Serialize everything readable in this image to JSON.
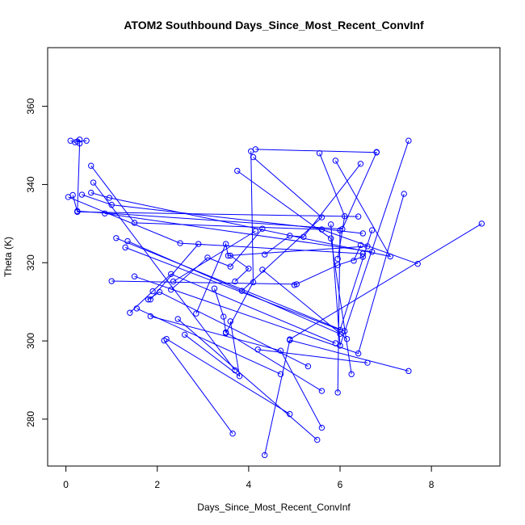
{
  "chart_data": {
    "type": "line",
    "title": "ATOM2 Southbound Days_Since_Most_Recent_ConvInf",
    "xlabel": "Days_Since_Most_Recent_ConvInf",
    "ylabel": "Theta (K)",
    "xlim": [
      -0.4,
      9.5
    ],
    "ylim": [
      268,
      375
    ],
    "x_ticks": [
      0,
      2,
      4,
      6,
      8
    ],
    "x_tick_labels": [
      "0",
      "2",
      "4",
      "6",
      "8"
    ],
    "y_ticks": [
      280,
      300,
      320,
      340,
      360
    ],
    "y_tick_labels": [
      "280",
      "300",
      "320",
      "340",
      "360"
    ],
    "line_color": "#0000ff",
    "marker": "open-circle",
    "grid": false,
    "series": [
      {
        "points": [
          [
            0.1,
            351.2
          ],
          [
            0.2,
            350.8
          ],
          [
            0.3,
            351.5
          ],
          [
            0.25,
            351
          ],
          [
            0.45,
            351.2
          ]
        ]
      },
      {
        "points": [
          [
            0.05,
            336.8
          ],
          [
            2.5,
            325
          ],
          [
            6.5,
            322.3
          ]
        ]
      },
      {
        "points": [
          [
            0.15,
            337.3
          ],
          [
            0.25,
            333
          ],
          [
            6.4,
            331.8
          ]
        ]
      },
      {
        "points": [
          [
            0.35,
            337.4
          ],
          [
            1.0,
            334.8
          ],
          [
            6.5,
            327.5
          ]
        ]
      },
      {
        "points": [
          [
            0.55,
            337.9
          ],
          [
            0.95,
            336.6
          ],
          [
            7.1,
            321.6
          ],
          [
            5.9,
            346.1
          ]
        ]
      },
      {
        "points": [
          [
            0.85,
            332.6
          ],
          [
            6.7,
            322.8
          ]
        ]
      },
      {
        "points": [
          [
            0.3,
            350.5
          ],
          [
            0.25,
            333.2
          ],
          [
            6.05,
            328.6
          ],
          [
            6.8,
            348.3
          ]
        ]
      },
      {
        "points": [
          [
            0.55,
            344.8
          ],
          [
            1.5,
            330.2
          ],
          [
            5.6,
            328.5
          ],
          [
            7.7,
            319.7
          ]
        ]
      },
      {
        "points": [
          [
            1.1,
            326.3
          ],
          [
            6.1,
            302.5
          ]
        ]
      },
      {
        "points": [
          [
            1.35,
            325.5
          ],
          [
            6.0,
            301.8
          ]
        ]
      },
      {
        "points": [
          [
            1.3,
            323.9
          ],
          [
            6.0,
            302.8
          ],
          [
            6.7,
            328.3
          ]
        ]
      },
      {
        "points": [
          [
            1.0,
            315.3
          ],
          [
            5.05,
            314.5
          ]
        ]
      },
      {
        "points": [
          [
            1.5,
            316.5
          ],
          [
            6.4,
            296.8
          ],
          [
            7.4,
            337.6
          ]
        ]
      },
      {
        "points": [
          [
            1.4,
            307.2
          ],
          [
            1.9,
            312.7
          ],
          [
            2.3,
            317.1
          ],
          [
            5.9,
            299.4
          ]
        ]
      },
      {
        "points": [
          [
            1.55,
            308.3
          ],
          [
            4.7,
            291.5
          ]
        ]
      },
      {
        "points": [
          [
            1.8,
            310.6
          ],
          [
            2.05,
            312.5
          ],
          [
            5.3,
            293.5
          ]
        ]
      },
      {
        "points": [
          [
            1.85,
            306.3
          ],
          [
            4.7,
            297.5
          ],
          [
            5.6,
            277.8
          ]
        ]
      },
      {
        "points": [
          [
            2.15,
            300.1
          ],
          [
            3.65,
            276.3
          ]
        ]
      },
      {
        "points": [
          [
            2.2,
            300.5
          ],
          [
            4.9,
            281.3
          ]
        ]
      },
      {
        "points": [
          [
            2.3,
            313.1
          ],
          [
            3.1,
            321.3
          ],
          [
            3.6,
            319
          ],
          [
            4.3,
            328.7
          ]
        ]
      },
      {
        "points": [
          [
            2.45,
            305.6
          ],
          [
            5.5,
            274.7
          ]
        ]
      },
      {
        "points": [
          [
            2.6,
            301.6
          ],
          [
            3.8,
            291
          ],
          [
            3.6,
            305
          ]
        ]
      },
      {
        "points": [
          [
            2.85,
            307
          ],
          [
            3.5,
            324.8
          ],
          [
            3.55,
            321.8
          ],
          [
            6.6,
            324.2
          ]
        ]
      },
      {
        "points": [
          [
            2.9,
            324.8
          ],
          [
            1.85,
            310.6
          ]
        ]
      },
      {
        "points": [
          [
            3.25,
            313.4
          ],
          [
            3.45,
            306.2
          ],
          [
            3.5,
            302.2
          ],
          [
            5.6,
            287.2
          ]
        ]
      },
      {
        "points": [
          [
            3.7,
            315.2
          ],
          [
            4.0,
            318.5
          ],
          [
            3.6,
            321.8
          ]
        ]
      },
      {
        "points": [
          [
            3.75,
            343.5
          ],
          [
            5.8,
            326.2
          ],
          [
            6.25,
            291.5
          ]
        ]
      },
      {
        "points": [
          [
            3.85,
            312.8
          ],
          [
            5.6,
            331.6
          ],
          [
            4.1,
            347
          ]
        ]
      },
      {
        "points": [
          [
            4.05,
            348.5
          ],
          [
            4.1,
            315
          ],
          [
            3.5,
            302
          ]
        ]
      },
      {
        "points": [
          [
            4.15,
            349
          ],
          [
            6.8,
            348.2
          ]
        ]
      },
      {
        "points": [
          [
            4.2,
            297.8
          ],
          [
            6.6,
            294.4
          ]
        ]
      },
      {
        "points": [
          [
            4.3,
            318.2
          ],
          [
            6.15,
            300.5
          ]
        ]
      },
      {
        "points": [
          [
            4.35,
            322.1
          ],
          [
            4.9,
            326.9
          ],
          [
            5.2,
            326.6
          ],
          [
            6.45,
            345.3
          ]
        ]
      },
      {
        "points": [
          [
            4.35,
            270.8
          ],
          [
            4.9,
            300.2
          ],
          [
            7.5,
            292.3
          ]
        ]
      },
      {
        "points": [
          [
            5.55,
            348
          ],
          [
            6.1,
            331.9
          ],
          [
            5.95,
            321
          ]
        ]
      },
      {
        "points": [
          [
            5.8,
            329.8
          ],
          [
            6.0,
            298.8
          ],
          [
            7.5,
            351.2
          ]
        ]
      },
      {
        "points": [
          [
            4.9,
            300.4
          ],
          [
            9.1,
            330
          ]
        ]
      },
      {
        "points": [
          [
            5.0,
            314.3
          ],
          [
            5.95,
            319.4
          ],
          [
            6.5,
            321.5
          ]
        ]
      },
      {
        "points": [
          [
            6.0,
            328.3
          ],
          [
            5.95,
            286.8
          ]
        ]
      },
      {
        "points": [
          [
            6.3,
            320.5
          ],
          [
            6.45,
            324.5
          ]
        ]
      },
      {
        "points": [
          [
            4.15,
            328.1
          ],
          [
            2.35,
            315.2
          ]
        ]
      },
      {
        "points": [
          [
            0.6,
            340.5
          ],
          [
            3.7,
            292.5
          ]
        ]
      }
    ]
  }
}
